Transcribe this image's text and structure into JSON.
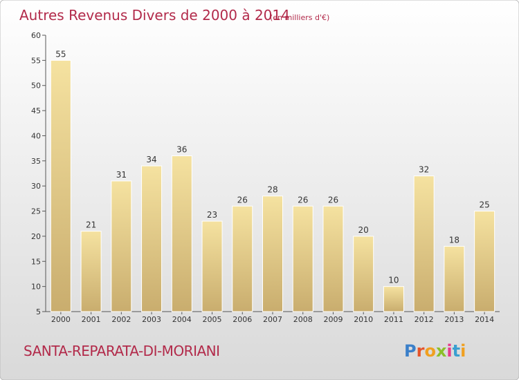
{
  "title": "Autres Revenus Divers de 2000 à 2014",
  "subtitle": "(en milliers d'€)",
  "location": "SANTA-REPARATA-DI-MORIANI",
  "logo": {
    "text": "Proxiti",
    "colors": [
      "#3a7fc9",
      "#e5542a",
      "#f0a020",
      "#8bbf2a",
      "#e63a8a",
      "#3a9fd0",
      "#f0a020"
    ]
  },
  "colors": {
    "title": "#b22a4a",
    "bar_top": "#f5e2a0",
    "bar_bottom": "#c9ad6e",
    "background_top": "#ffffff",
    "background_bottom": "#d9d9d9"
  },
  "chart_data": {
    "type": "bar",
    "categories": [
      "2000",
      "2001",
      "2002",
      "2003",
      "2004",
      "2005",
      "2006",
      "2007",
      "2008",
      "2009",
      "2010",
      "2011",
      "2012",
      "2013",
      "2014"
    ],
    "values": [
      55,
      21,
      31,
      34,
      36,
      23,
      26,
      28,
      26,
      26,
      20,
      10,
      32,
      18,
      25
    ],
    "ylim": [
      5,
      60
    ],
    "yticks": [
      5,
      10,
      15,
      20,
      25,
      30,
      35,
      40,
      45,
      50,
      55,
      60
    ],
    "grid": false,
    "data_labels": true
  }
}
